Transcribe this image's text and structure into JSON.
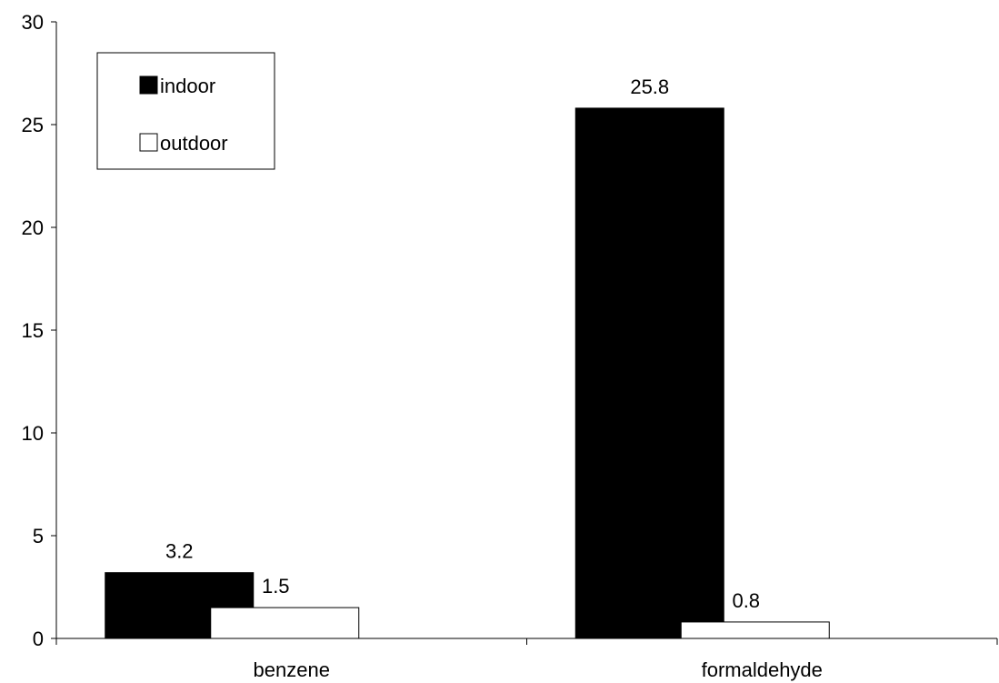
{
  "chart_data": {
    "type": "bar",
    "title": "",
    "xlabel": "",
    "ylabel": "",
    "categories": [
      "benzene",
      "formaldehyde"
    ],
    "series": [
      {
        "name": "indoor",
        "values": [
          3.2,
          25.8
        ],
        "labels": [
          "3.2",
          "25.8"
        ],
        "color": "#000000"
      },
      {
        "name": "outdoor",
        "values": [
          1.5,
          0.8
        ],
        "labels": [
          "1.5",
          "0.8"
        ],
        "color": "#ffffff"
      }
    ],
    "ylim": [
      0,
      30
    ],
    "yticks": [
      0,
      5,
      10,
      15,
      20,
      25,
      30
    ],
    "grid": false,
    "legend": {
      "position": "top-left",
      "entries": [
        "indoor",
        "outdoor"
      ]
    }
  }
}
